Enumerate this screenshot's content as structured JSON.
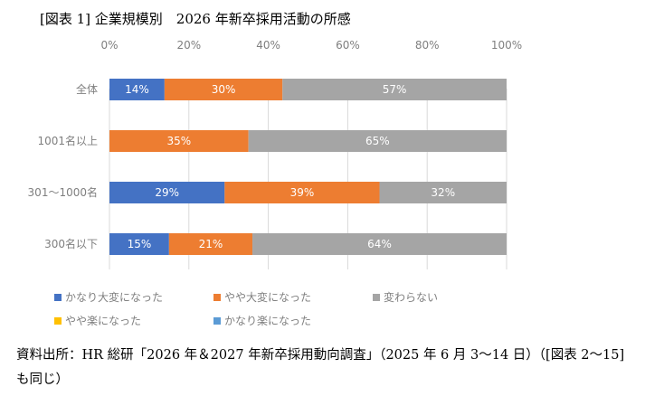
{
  "title": "[図表 1] 企業規模別　2026 年新卒採用活動の所感",
  "chart_data": {
    "type": "bar",
    "orientation": "horizontal",
    "stacked": true,
    "percent": true,
    "xlim": [
      0,
      100
    ],
    "x_ticks": [
      "0%",
      "20%",
      "40%",
      "60%",
      "80%",
      "100%"
    ],
    "grid": true,
    "legend_position": "bottom",
    "categories": [
      "全体",
      "1001名以上",
      "301～1000名",
      "300名以下"
    ],
    "series": [
      {
        "name": "かなり大変になった",
        "color": "#4472C4",
        "values": [
          14,
          0,
          29,
          15
        ]
      },
      {
        "name": "やや大変になった",
        "color": "#ED7D31",
        "values": [
          30,
          35,
          39,
          21
        ]
      },
      {
        "name": "変わらない",
        "color": "#A5A5A5",
        "values": [
          57,
          65,
          32,
          64
        ]
      },
      {
        "name": "やや楽になった",
        "color": "#FFC000",
        "values": [
          0,
          0,
          0,
          0
        ]
      },
      {
        "name": "かなり楽になった",
        "color": "#5B9BD5",
        "values": [
          0,
          0,
          0,
          0
        ]
      }
    ]
  },
  "source": "資料出所：HR 総研「2026 年＆2027 年新卒採用動向調査」（2025 年 6 月 3～14 日）（[図表 2～15] も同じ）"
}
